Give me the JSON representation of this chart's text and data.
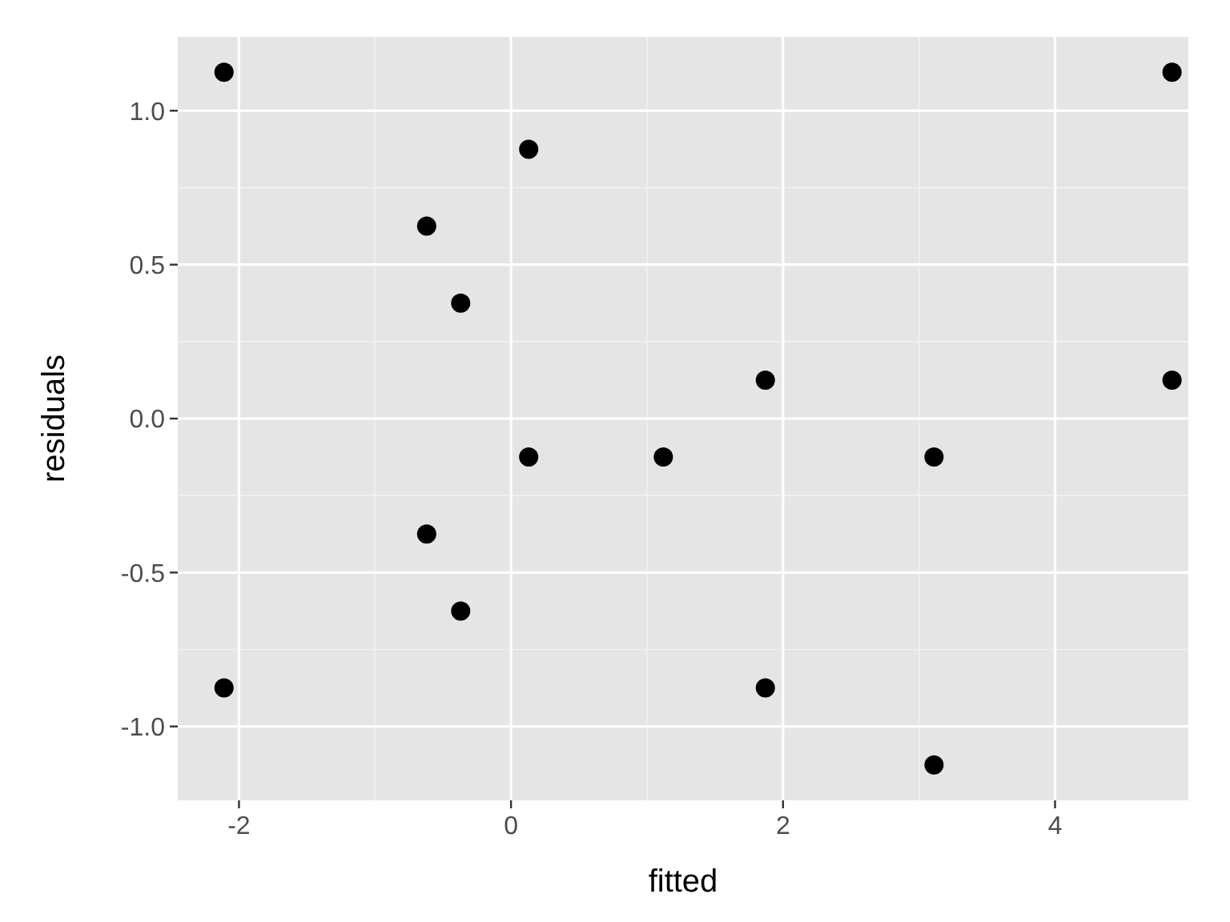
{
  "chart_data": {
    "type": "scatter",
    "xlabel": "fitted",
    "ylabel": "residuals",
    "color": "#000000",
    "marker": "circle",
    "grid": true,
    "x": [
      -2.11,
      -2.11,
      -0.62,
      -0.62,
      -0.37,
      -0.37,
      0.13,
      0.13,
      1.12,
      1.87,
      1.87,
      3.11,
      3.11,
      4.86,
      4.86
    ],
    "values": [
      1.125,
      -0.875,
      0.625,
      -0.375,
      0.375,
      -0.625,
      0.875,
      -0.125,
      -0.125,
      0.125,
      -0.875,
      -0.125,
      -1.125,
      1.125,
      0.125
    ],
    "xlim": [
      -2.45,
      4.98
    ],
    "ylim": [
      -1.24,
      1.24
    ],
    "xticks": [
      -2,
      0,
      2,
      4
    ],
    "yticks": [
      {
        "value": -1,
        "label": "-1.0"
      },
      {
        "value": -0.5,
        "label": "-0.5"
      },
      {
        "value": 0,
        "label": "0.0"
      },
      {
        "value": 0.5,
        "label": "0.5"
      },
      {
        "value": 1,
        "label": "1.0"
      }
    ]
  }
}
